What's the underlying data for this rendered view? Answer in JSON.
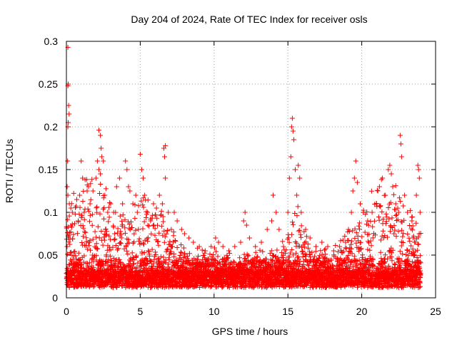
{
  "chart_data": {
    "type": "scatter",
    "title": "Day 204 of 2024, Rate Of TEC Index for receiver osls",
    "xlabel": "GPS time / hours",
    "ylabel": "ROTI / TECUs",
    "xlim": [
      0,
      25
    ],
    "ylim": [
      0,
      0.3
    ],
    "xticks": [
      0,
      5,
      10,
      15,
      20,
      25
    ],
    "xtick_labels": [
      "0",
      "5",
      "10",
      "15",
      "20",
      "25"
    ],
    "yticks": [
      0,
      0.05,
      0.1,
      0.15,
      0.2,
      0.25,
      0.3
    ],
    "ytick_labels": [
      "0",
      "0.05",
      "0.1",
      "0.15",
      "0.2",
      "0.25",
      "0.3"
    ],
    "grid": true,
    "marker": "plus",
    "color": "#ff0000",
    "series": [
      {
        "name": "ROTI",
        "points": [
          [
            0.1,
            0.293
          ],
          [
            0.12,
            0.25
          ],
          [
            0.1,
            0.248
          ],
          [
            0.15,
            0.225
          ],
          [
            0.18,
            0.215
          ],
          [
            0.12,
            0.205
          ],
          [
            0.1,
            0.2
          ],
          [
            0.08,
            0.16
          ],
          [
            0.05,
            0.13
          ],
          [
            0.1,
            0.12
          ],
          [
            0.2,
            0.11
          ],
          [
            0.3,
            0.105
          ],
          [
            0.4,
            0.1
          ],
          [
            0.6,
            0.098
          ],
          [
            0.7,
            0.115
          ],
          [
            0.8,
            0.09
          ],
          [
            0.9,
            0.12
          ],
          [
            1.0,
            0.16
          ],
          [
            1.1,
            0.14
          ],
          [
            1.2,
            0.1
          ],
          [
            1.4,
            0.125
          ],
          [
            1.5,
            0.13
          ],
          [
            1.6,
            0.11
          ],
          [
            1.8,
            0.125
          ],
          [
            2.0,
            0.14
          ],
          [
            2.1,
            0.16
          ],
          [
            2.2,
            0.196
          ],
          [
            2.3,
            0.19
          ],
          [
            2.35,
            0.175
          ],
          [
            2.4,
            0.165
          ],
          [
            2.5,
            0.16
          ],
          [
            2.3,
            0.145
          ],
          [
            2.2,
            0.15
          ],
          [
            2.6,
            0.12
          ],
          [
            2.8,
            0.1
          ],
          [
            3.0,
            0.11
          ],
          [
            3.2,
            0.1
          ],
          [
            3.4,
            0.13
          ],
          [
            3.6,
            0.14
          ],
          [
            3.8,
            0.11
          ],
          [
            4.0,
            0.16
          ],
          [
            4.1,
            0.15
          ],
          [
            4.2,
            0.13
          ],
          [
            4.3,
            0.125
          ],
          [
            4.5,
            0.11
          ],
          [
            4.7,
            0.12
          ],
          [
            4.8,
            0.1
          ],
          [
            5.0,
            0.168
          ],
          [
            5.1,
            0.15
          ],
          [
            5.2,
            0.14
          ],
          [
            5.3,
            0.12
          ],
          [
            5.5,
            0.1
          ],
          [
            5.7,
            0.09
          ],
          [
            5.9,
            0.11
          ],
          [
            6.1,
            0.105
          ],
          [
            6.3,
            0.12
          ],
          [
            6.5,
            0.11
          ],
          [
            6.6,
            0.175
          ],
          [
            6.7,
            0.178
          ],
          [
            6.65,
            0.165
          ],
          [
            6.7,
            0.14
          ],
          [
            6.9,
            0.1
          ],
          [
            7.1,
            0.08
          ],
          [
            7.3,
            0.1
          ],
          [
            7.5,
            0.09
          ],
          [
            7.8,
            0.08
          ],
          [
            8.0,
            0.075
          ],
          [
            8.3,
            0.07
          ],
          [
            8.6,
            0.065
          ],
          [
            9.0,
            0.06
          ],
          [
            9.4,
            0.055
          ],
          [
            9.8,
            0.06
          ],
          [
            10.1,
            0.07
          ],
          [
            10.3,
            0.065
          ],
          [
            10.6,
            0.06
          ],
          [
            11.0,
            0.055
          ],
          [
            11.4,
            0.06
          ],
          [
            11.8,
            0.065
          ],
          [
            12.0,
            0.09
          ],
          [
            12.1,
            0.1
          ],
          [
            12.2,
            0.085
          ],
          [
            12.4,
            0.07
          ],
          [
            12.8,
            0.06
          ],
          [
            13.2,
            0.065
          ],
          [
            13.6,
            0.08
          ],
          [
            13.9,
            0.09
          ],
          [
            14.0,
            0.12
          ],
          [
            14.2,
            0.1
          ],
          [
            14.4,
            0.08
          ],
          [
            14.7,
            0.06
          ],
          [
            15.0,
            0.1
          ],
          [
            15.1,
            0.14
          ],
          [
            15.2,
            0.165
          ],
          [
            15.25,
            0.2
          ],
          [
            15.3,
            0.21
          ],
          [
            15.35,
            0.195
          ],
          [
            15.4,
            0.185
          ],
          [
            15.5,
            0.15
          ],
          [
            15.6,
            0.12
          ],
          [
            15.7,
            0.155
          ],
          [
            15.8,
            0.14
          ],
          [
            15.9,
            0.1
          ],
          [
            16.2,
            0.08
          ],
          [
            16.5,
            0.07
          ],
          [
            16.9,
            0.06
          ],
          [
            17.3,
            0.065
          ],
          [
            17.7,
            0.06
          ],
          [
            18.1,
            0.055
          ],
          [
            18.5,
            0.06
          ],
          [
            18.9,
            0.065
          ],
          [
            19.1,
            0.08
          ],
          [
            19.3,
            0.1
          ],
          [
            19.4,
            0.125
          ],
          [
            19.5,
            0.14
          ],
          [
            19.6,
            0.16
          ],
          [
            19.7,
            0.135
          ],
          [
            19.9,
            0.11
          ],
          [
            20.1,
            0.1
          ],
          [
            20.4,
            0.09
          ],
          [
            20.7,
            0.1
          ],
          [
            21.0,
            0.11
          ],
          [
            21.2,
            0.13
          ],
          [
            21.4,
            0.14
          ],
          [
            21.6,
            0.12
          ],
          [
            21.8,
            0.15
          ],
          [
            21.9,
            0.155
          ],
          [
            22.0,
            0.145
          ],
          [
            22.1,
            0.13
          ],
          [
            22.3,
            0.11
          ],
          [
            22.5,
            0.1
          ],
          [
            22.6,
            0.19
          ],
          [
            22.65,
            0.18
          ],
          [
            22.7,
            0.165
          ],
          [
            22.9,
            0.12
          ],
          [
            23.1,
            0.1
          ],
          [
            23.4,
            0.09
          ],
          [
            23.7,
            0.12
          ],
          [
            23.8,
            0.155
          ],
          [
            23.85,
            0.15
          ],
          [
            23.9,
            0.14
          ],
          [
            23.95,
            0.1
          ]
        ]
      }
    ]
  }
}
